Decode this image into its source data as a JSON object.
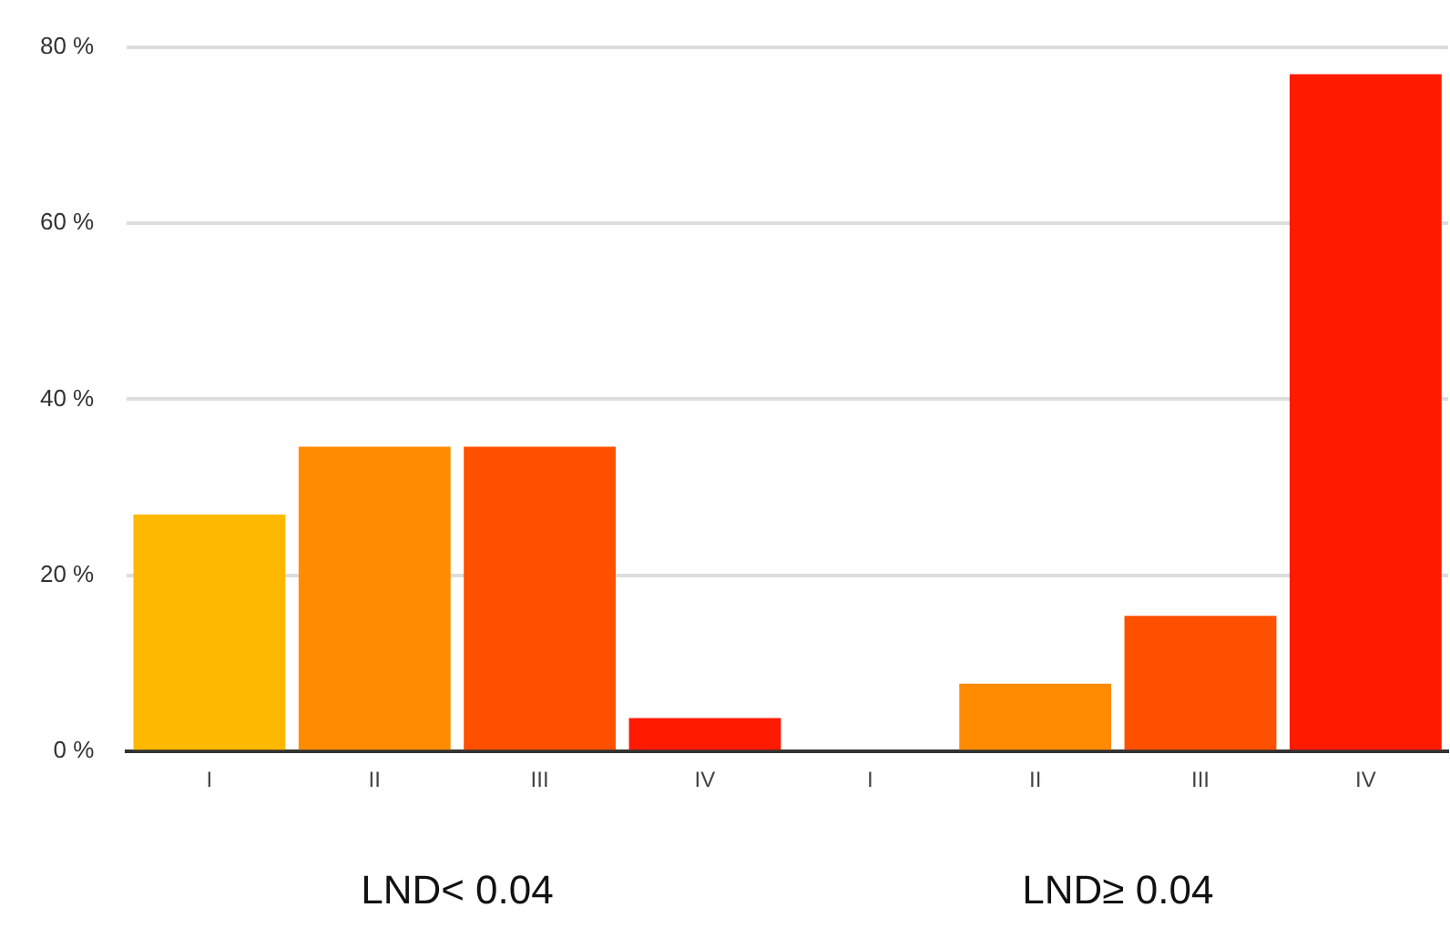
{
  "chart_data": {
    "type": "bar",
    "categories": [
      "I",
      "II",
      "III",
      "IV",
      "I",
      "II",
      "III",
      "IV"
    ],
    "values": [
      26.9,
      34.6,
      34.6,
      3.8,
      0,
      7.7,
      15.4,
      76.9
    ],
    "colors": [
      "#ffb800",
      "#ff8c00",
      "#ff5000",
      "#ff1a00",
      "#ffb800",
      "#ff8c00",
      "#ff5000",
      "#ff1a00"
    ],
    "ylim": [
      0,
      80
    ],
    "yticks": [
      {
        "value": 0,
        "label": "0 %"
      },
      {
        "value": 20,
        "label": "20 %"
      },
      {
        "value": 40,
        "label": "40 %"
      },
      {
        "value": 60,
        "label": "60 %"
      },
      {
        "value": 80,
        "label": "80 %"
      }
    ],
    "grid": "y",
    "annotations": [
      "LND< 0.04",
      "LND≥ 0.04"
    ]
  }
}
